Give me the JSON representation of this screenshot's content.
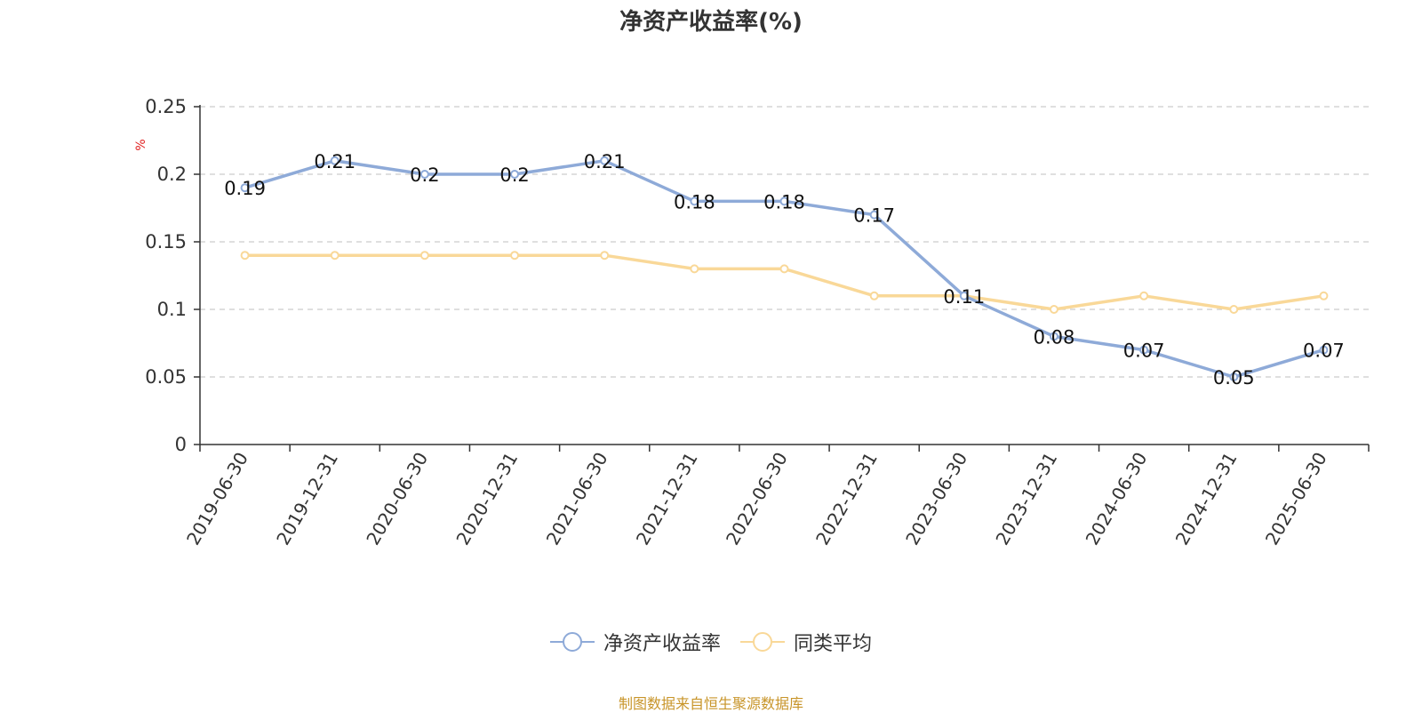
{
  "chart_data": {
    "type": "line",
    "title": "净资产收益率(%)",
    "y_unit": "%",
    "categories": [
      "2019-06-30",
      "2019-12-31",
      "2020-06-30",
      "2020-12-31",
      "2021-06-30",
      "2021-12-31",
      "2022-06-30",
      "2022-12-31",
      "2023-06-30",
      "2023-12-31",
      "2024-06-30",
      "2024-12-31",
      "2025-06-30"
    ],
    "series": [
      {
        "name": "净资产收益率",
        "color": "#8eaad8",
        "show_labels": true,
        "values": [
          0.19,
          0.21,
          0.2,
          0.2,
          0.21,
          0.18,
          0.18,
          0.17,
          0.11,
          0.08,
          0.07,
          0.05,
          0.07
        ]
      },
      {
        "name": "同类平均",
        "color": "#f9d898",
        "show_labels": false,
        "values": [
          0.14,
          0.14,
          0.14,
          0.14,
          0.14,
          0.13,
          0.13,
          0.11,
          0.11,
          0.1,
          0.11,
          0.1,
          0.11
        ]
      }
    ],
    "ylim": [
      0,
      0.25
    ],
    "yticks": [
      "0",
      "0.05",
      "0.1",
      "0.15",
      "0.2",
      "0.25"
    ],
    "grid": true,
    "legend_position": "bottom"
  },
  "source_text": "制图数据来自恒生聚源数据库"
}
